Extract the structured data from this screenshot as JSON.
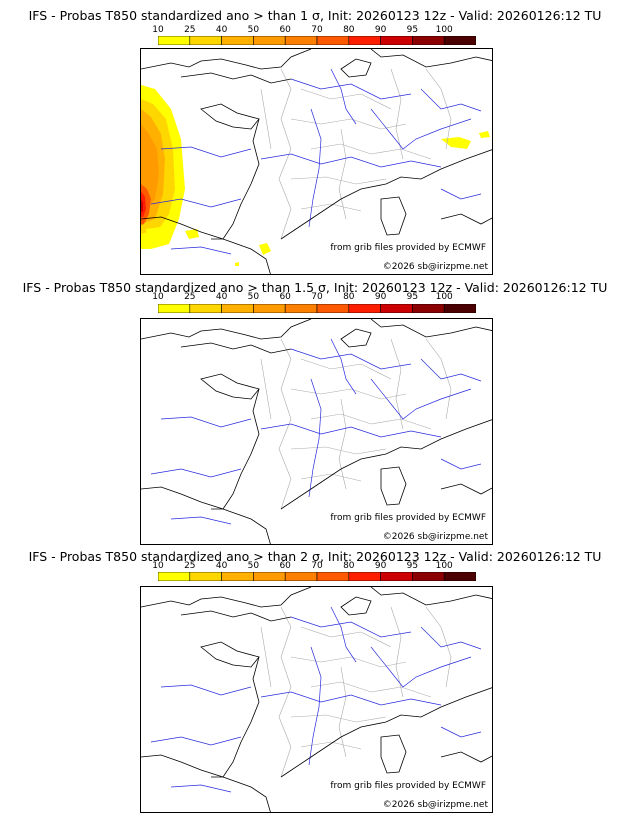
{
  "colorbar": {
    "ticks": [
      "10",
      "25",
      "40",
      "50",
      "60",
      "70",
      "80",
      "90",
      "95",
      "100"
    ],
    "colors": [
      "#ffff00",
      "#ffd700",
      "#ffb000",
      "#ff9a00",
      "#ff7f00",
      "#ff5a00",
      "#ff1e00",
      "#cc0000",
      "#8b0000",
      "#4a0000"
    ]
  },
  "panels": [
    {
      "title": "IFS - Probas T850  standardized ano > than 1 σ, Init: 20260123 12z - Valid: 20260126:12 TU",
      "source": "from grib files provided by ECMWF",
      "credit": "©2026 sb@irizpme.net"
    },
    {
      "title": "IFS - Probas T850  standardized ano > than 1.5 σ, Init: 20260123 12z - Valid: 20260126:12 TU",
      "source": "from grib files provided by ECMWF",
      "credit": "©2026 sb@irizpme.net"
    },
    {
      "title": "IFS - Probas T850  standardized ano > than 2 σ, Init: 20260123 12z - Valid: 20260126:12 TU",
      "source": "from grib files provided by ECMWF",
      "credit": "©2026 sb@irizpme.net"
    }
  ],
  "map_colors": {
    "coast": "#000000",
    "rivers": "#2a2ae0",
    "borders": "#aaaaaa"
  }
}
